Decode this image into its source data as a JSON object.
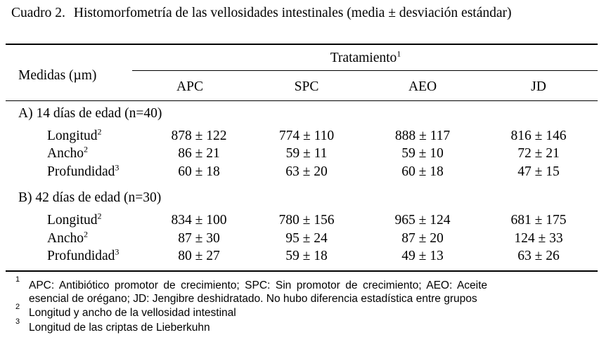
{
  "caption": {
    "number": "Cuadro 2.",
    "title": "Histomorfometría de las vellosidades intestinales (media ± desviación estándar)"
  },
  "table": {
    "row_header": "Medidas (µm)",
    "group_header": "Tratamiento",
    "group_header_mark": "1",
    "columns": [
      "APC",
      "SPC",
      "AEO",
      "JD"
    ],
    "sections": [
      {
        "title": "A) 14 días de edad (n=40)",
        "rows": [
          {
            "label": "Longitud",
            "mark": "2",
            "values": [
              "878 ± 122",
              "774 ± 110",
              "888 ± 117",
              "816 ± 146"
            ]
          },
          {
            "label": "Ancho",
            "mark": "2",
            "values": [
              "86 ± 21",
              "59 ± 11",
              "59 ± 10",
              "72 ± 21"
            ]
          },
          {
            "label": "Profundidad",
            "mark": "3",
            "values": [
              "60 ± 18",
              "63 ± 20",
              "60 ± 18",
              "47 ± 15"
            ]
          }
        ]
      },
      {
        "title": "B) 42 días de edad (n=30)",
        "rows": [
          {
            "label": "Longitud",
            "mark": "2",
            "values": [
              "834 ± 100",
              "780 ± 156",
              "965 ± 124",
              "681 ± 175"
            ]
          },
          {
            "label": "Ancho",
            "mark": "2",
            "values": [
              "87 ± 30",
              "95 ± 24",
              "87 ± 20",
              "124 ± 33"
            ]
          },
          {
            "label": "Profundidad",
            "mark": "3",
            "values": [
              "80 ± 27",
              "59 ± 18",
              "49 ± 13",
              "63 ± 26"
            ]
          }
        ]
      }
    ]
  },
  "footnotes": [
    {
      "mark": "1",
      "lines": [
        "APC: Antibiótico promotor de crecimiento; SPC: Sin promotor de crecimiento; AEO: Aceite",
        "esencial de orégano; JD: Jengibre deshidratado. No hubo diferencia estadística entre grupos"
      ]
    },
    {
      "mark": "2",
      "lines": [
        "Longitud y ancho de la vellosidad intestinal"
      ]
    },
    {
      "mark": "3",
      "lines": [
        "Longitud de las criptas de Lieberkuhn"
      ]
    }
  ]
}
